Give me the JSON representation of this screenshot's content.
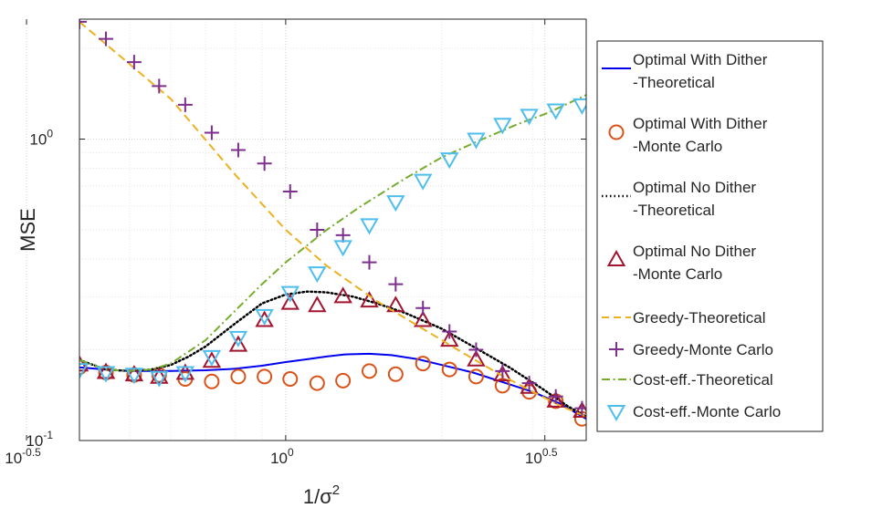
{
  "chart_data": {
    "type": "line",
    "title": "",
    "xlabel": "1/σ",
    "xlabel_sup": "2",
    "ylabel": "MSE",
    "xscale": "log",
    "yscale": "log",
    "xlim": [
      0.4,
      3.8
    ],
    "ylim": [
      0.1,
      2.5
    ],
    "grid": true,
    "legend_position": "right-outside",
    "x_ticks": [
      {
        "value": 0.316228,
        "base": "10",
        "exp": "-0.5"
      },
      {
        "value": 1.0,
        "base": "10",
        "exp": "0"
      },
      {
        "value": 3.162278,
        "base": "10",
        "exp": "0.5"
      }
    ],
    "y_ticks": [
      {
        "value": 0.1,
        "base": "10",
        "exp": "-1"
      },
      {
        "value": 1.0,
        "base": "10",
        "exp": "0"
      }
    ],
    "series": [
      {
        "name": "Optimal With Dither -Theoretical",
        "legend_lines": [
          "Optimal With Dither",
          "-Theoretical"
        ],
        "kind": "line",
        "style": "solid",
        "color": "#0000ee",
        "x": [
          0.4,
          0.45,
          0.5,
          0.6,
          0.7,
          0.8,
          0.9,
          1.0,
          1.1,
          1.2,
          1.3,
          1.45,
          1.6,
          1.8,
          2.0,
          2.3,
          2.6,
          3.0,
          3.4,
          3.8
        ],
        "y": [
          0.175,
          0.172,
          0.17,
          0.17,
          0.171,
          0.173,
          0.177,
          0.182,
          0.186,
          0.19,
          0.193,
          0.194,
          0.192,
          0.186,
          0.178,
          0.168,
          0.157,
          0.145,
          0.132,
          0.118
        ]
      },
      {
        "name": "Optimal With Dither -Monte Carlo",
        "legend_lines": [
          "Optimal With Dither",
          "-Monte Carlo"
        ],
        "kind": "marker",
        "marker": "circle",
        "color": "#d95319",
        "x": [
          0.4,
          0.45,
          0.51,
          0.57,
          0.64,
          0.72,
          0.81,
          0.91,
          1.02,
          1.15,
          1.29,
          1.45,
          1.63,
          1.84,
          2.07,
          2.33,
          2.62,
          2.95,
          3.32,
          3.73
        ],
        "y": [
          0.175,
          0.168,
          0.165,
          0.165,
          0.16,
          0.157,
          0.163,
          0.163,
          0.16,
          0.155,
          0.158,
          0.17,
          0.166,
          0.18,
          0.172,
          0.163,
          0.152,
          0.145,
          0.135,
          0.118
        ]
      },
      {
        "name": "Optimal No Dither -Theoretical",
        "legend_lines": [
          "Optimal No Dither",
          "-Theoretical"
        ],
        "kind": "line",
        "style": "dotted",
        "color": "#000000",
        "x": [
          0.4,
          0.45,
          0.5,
          0.55,
          0.6,
          0.65,
          0.7,
          0.8,
          0.9,
          1.0,
          1.1,
          1.2,
          1.35,
          1.5,
          1.7,
          2.0,
          2.3,
          2.7,
          3.1,
          3.5,
          3.8
        ],
        "y": [
          0.185,
          0.172,
          0.17,
          0.172,
          0.178,
          0.19,
          0.205,
          0.245,
          0.285,
          0.305,
          0.312,
          0.31,
          0.3,
          0.285,
          0.265,
          0.235,
          0.205,
          0.175,
          0.15,
          0.13,
          0.12
        ]
      },
      {
        "name": "Optimal No Dither -Monte Carlo",
        "legend_lines": [
          "Optimal No Dither",
          "-Monte Carlo"
        ],
        "kind": "marker",
        "marker": "triangle-up",
        "color": "#a2142f",
        "x": [
          0.4,
          0.45,
          0.51,
          0.57,
          0.64,
          0.72,
          0.81,
          0.91,
          1.02,
          1.15,
          1.29,
          1.45,
          1.63,
          1.84,
          2.07,
          2.33,
          2.62,
          2.95,
          3.32,
          3.73
        ],
        "y": [
          0.178,
          0.168,
          0.165,
          0.162,
          0.167,
          0.183,
          0.207,
          0.25,
          0.285,
          0.28,
          0.3,
          0.29,
          0.28,
          0.25,
          0.215,
          0.185,
          0.165,
          0.15,
          0.135,
          0.125
        ]
      },
      {
        "name": "Greedy-Theoretical",
        "legend_lines": [
          "Greedy-Theoretical"
        ],
        "kind": "line",
        "style": "dashed",
        "color": "#edb120",
        "x": [
          0.4,
          0.6,
          0.8,
          1.0,
          1.2,
          1.5,
          1.8,
          2.2,
          2.6,
          3.0,
          3.4,
          3.8
        ],
        "y": [
          2.45,
          1.36,
          0.76,
          0.5,
          0.38,
          0.29,
          0.24,
          0.195,
          0.165,
          0.145,
          0.13,
          0.12
        ]
      },
      {
        "name": "Greedy-Monte Carlo",
        "legend_lines": [
          "Greedy-Monte Carlo"
        ],
        "kind": "marker",
        "marker": "plus",
        "color": "#7e2f8e",
        "x": [
          0.4,
          0.45,
          0.51,
          0.57,
          0.64,
          0.72,
          0.81,
          0.91,
          1.02,
          1.15,
          1.29,
          1.45,
          1.63,
          1.84,
          2.07,
          2.33,
          2.62,
          2.95,
          3.32,
          3.73
        ],
        "y": [
          2.45,
          2.15,
          1.8,
          1.5,
          1.3,
          1.05,
          0.92,
          0.83,
          0.67,
          0.5,
          0.48,
          0.39,
          0.33,
          0.275,
          0.23,
          0.2,
          0.17,
          0.155,
          0.14,
          0.128
        ]
      },
      {
        "name": "Cost-eff.-Theoretical",
        "legend_lines": [
          "Cost-eff.-Theoretical"
        ],
        "kind": "line",
        "style": "dashdot",
        "color": "#77ac30",
        "x": [
          0.4,
          0.45,
          0.5,
          0.55,
          0.6,
          0.7,
          0.8,
          0.9,
          1.0,
          1.2,
          1.4,
          1.7,
          2.0,
          2.4,
          2.8,
          3.2,
          3.8
        ],
        "y": [
          0.185,
          0.172,
          0.17,
          0.172,
          0.18,
          0.215,
          0.27,
          0.33,
          0.39,
          0.5,
          0.6,
          0.74,
          0.87,
          1.0,
          1.12,
          1.22,
          1.4
        ]
      },
      {
        "name": "Cost-eff.-Monte Carlo",
        "legend_lines": [
          "Cost-eff.-Monte Carlo"
        ],
        "kind": "marker",
        "marker": "triangle-down",
        "color": "#4dbeee",
        "x": [
          0.4,
          0.45,
          0.51,
          0.57,
          0.64,
          0.72,
          0.81,
          0.91,
          1.02,
          1.15,
          1.29,
          1.45,
          1.63,
          1.84,
          2.07,
          2.33,
          2.62,
          2.95,
          3.32,
          3.73
        ],
        "y": [
          0.172,
          0.168,
          0.166,
          0.162,
          0.168,
          0.19,
          0.22,
          0.26,
          0.31,
          0.36,
          0.44,
          0.52,
          0.62,
          0.73,
          0.86,
          1.0,
          1.12,
          1.2,
          1.25,
          1.3
        ]
      }
    ]
  }
}
